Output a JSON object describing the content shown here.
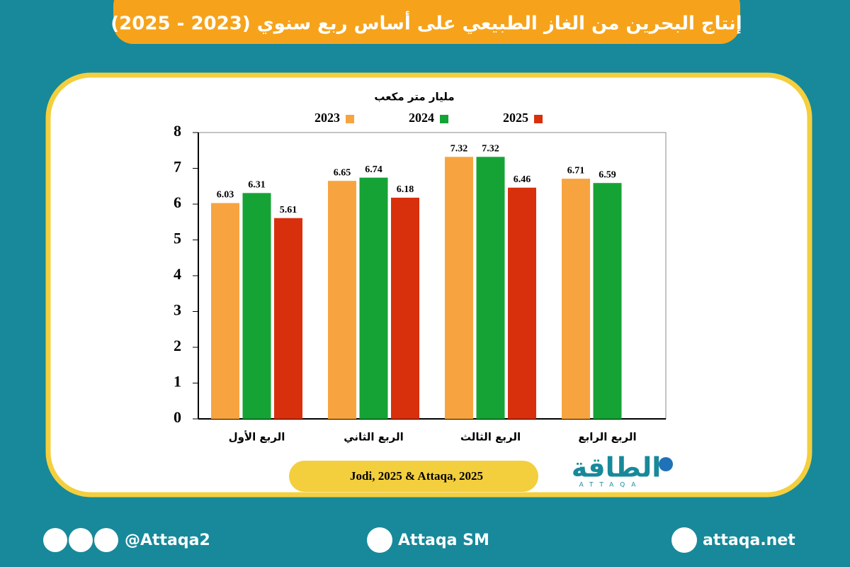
{
  "chart_data": {
    "type": "bar",
    "title": "إنتاج البحرين من الغاز الطبيعي على أساس ربع سنوي (2023 - 2025)",
    "subtitle": "مليار متر مكعب",
    "categories": [
      "الربع الأول",
      "الربع الثاني",
      "الربع الثالث",
      "الربع الرابع"
    ],
    "series": [
      {
        "name": "2023",
        "color": "#f7a440",
        "values": [
          6.03,
          6.65,
          7.32,
          6.71
        ]
      },
      {
        "name": "2024",
        "color": "#16a336",
        "values": [
          6.31,
          6.74,
          7.32,
          6.59
        ]
      },
      {
        "name": "2025",
        "color": "#d8300c",
        "values": [
          5.61,
          6.18,
          6.46,
          null
        ]
      }
    ],
    "ylim": [
      0,
      8
    ],
    "yticks": [
      0,
      1,
      2,
      3,
      4,
      5,
      6,
      7,
      8
    ],
    "grid": false,
    "source": "Jodi, 2025 & Attaqa, 2025"
  },
  "logo": {
    "text": "الطاقة",
    "latin": "ATTAQA"
  },
  "footer": {
    "handle": "@Attaqa2",
    "youtube": "Attaqa SM",
    "website": "attaqa.net"
  }
}
